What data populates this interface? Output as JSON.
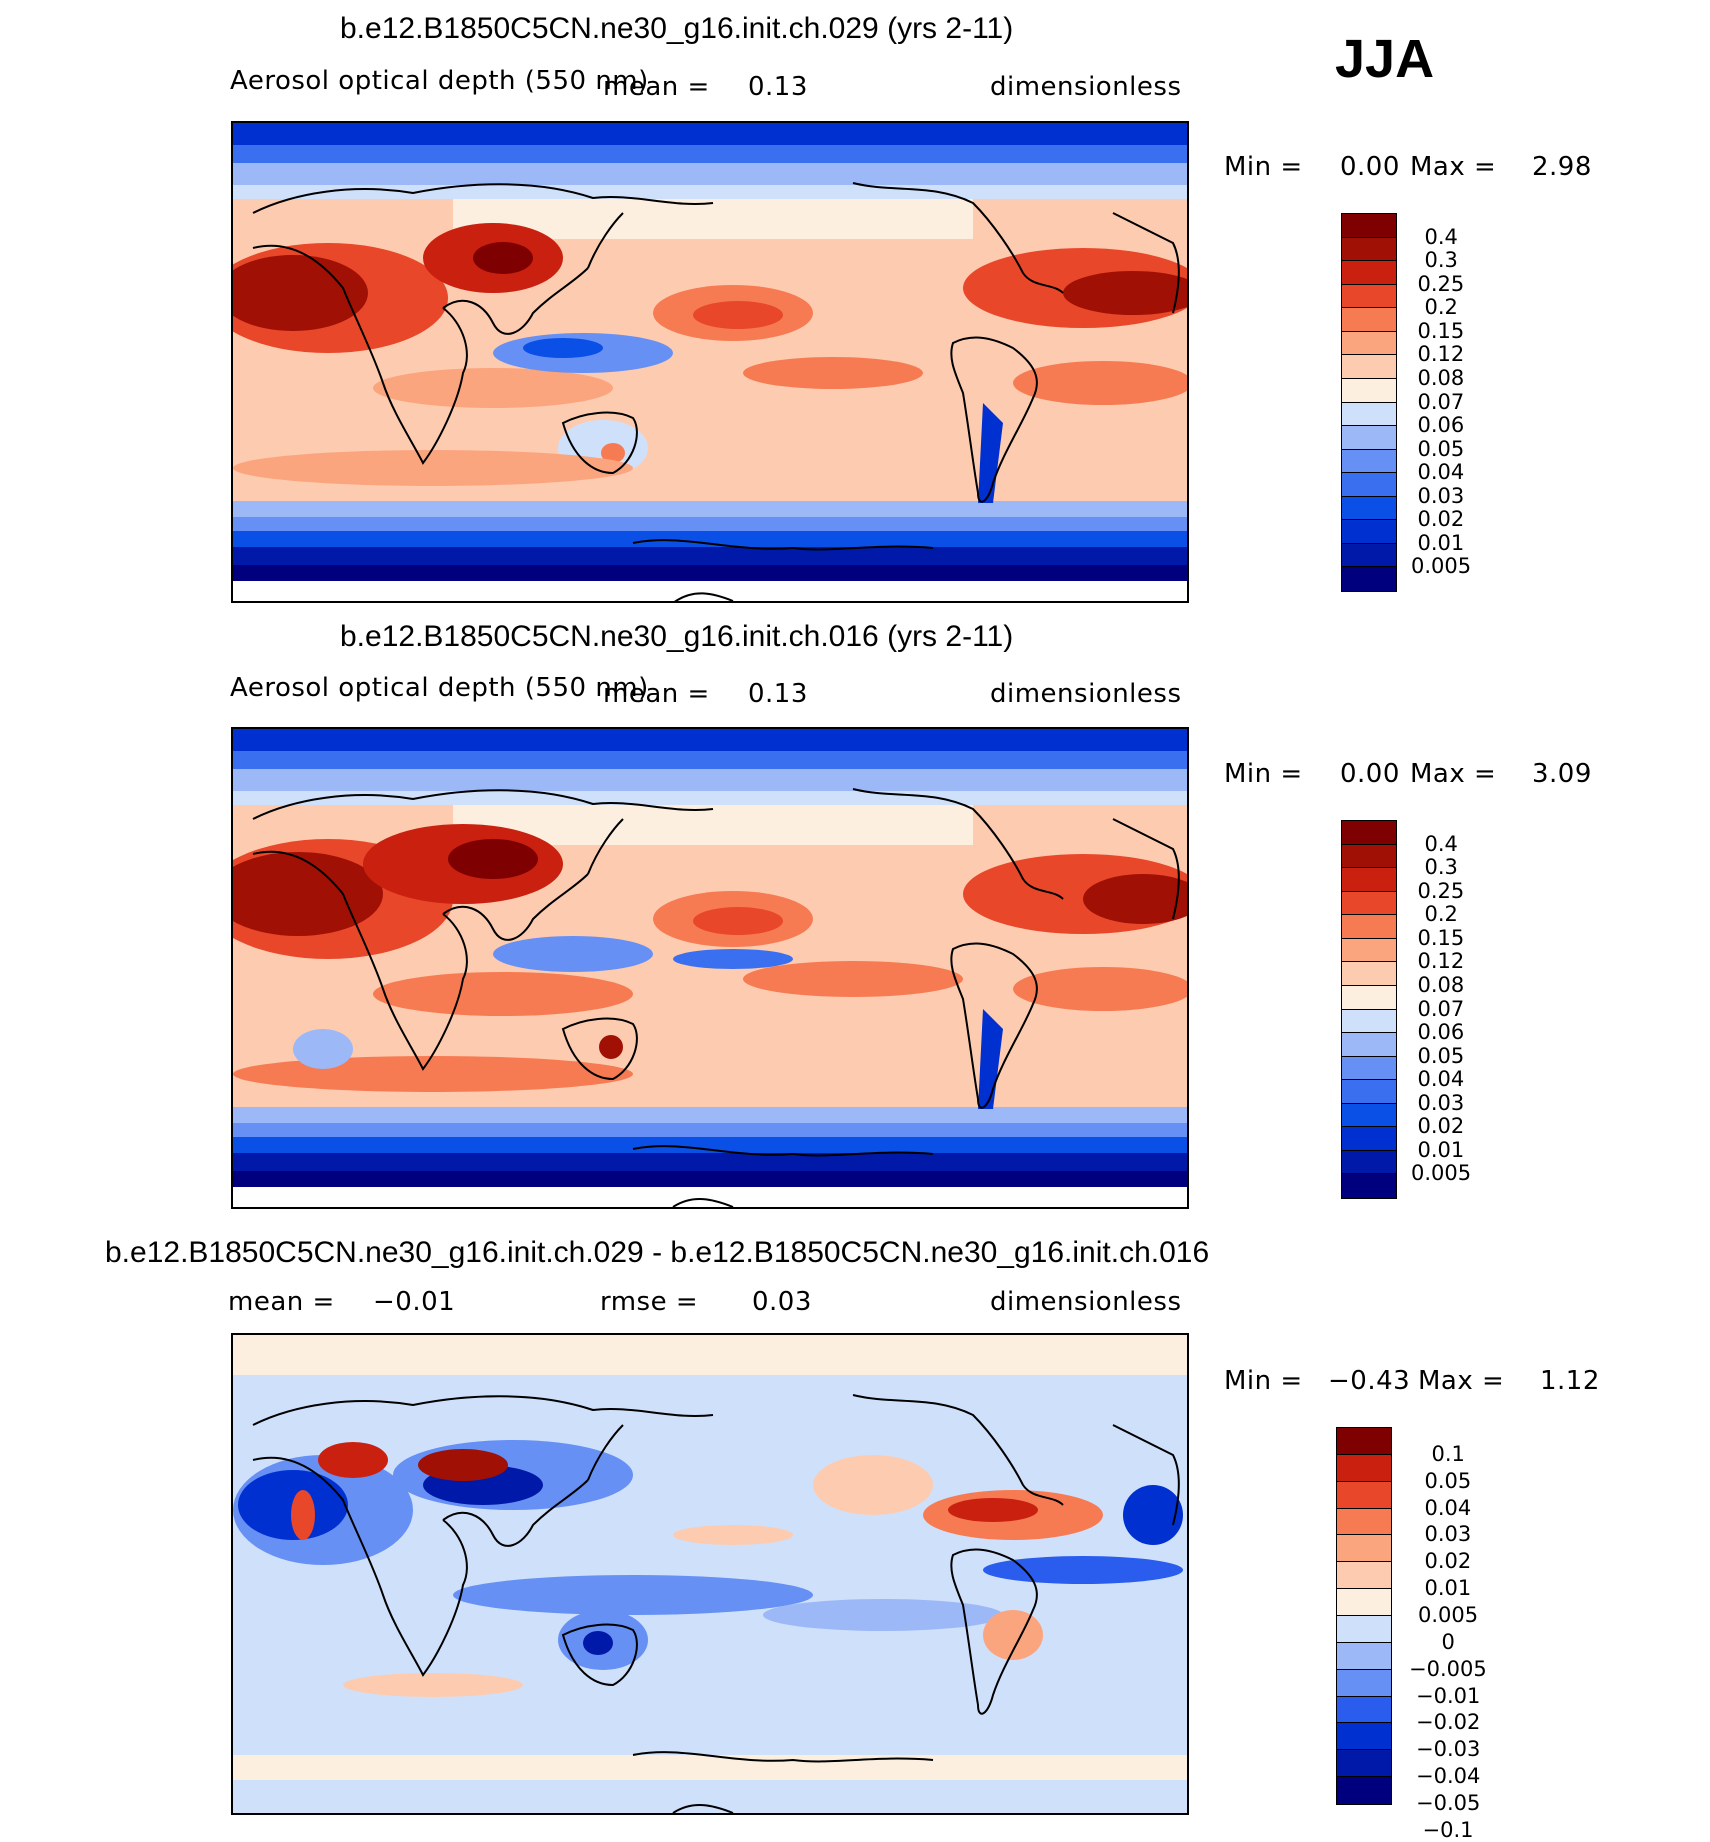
{
  "season": "JJA",
  "colors": {
    "aod": [
      "#00007f",
      "#0019a8",
      "#0030d0",
      "#0a4fe6",
      "#3a6ff0",
      "#6690f4",
      "#9cb8f7",
      "#cfe0fb",
      "#fdefe0",
      "#fdccb0",
      "#fba57f",
      "#f77b52",
      "#e8472a",
      "#c9200f",
      "#a01005",
      "#7f0000"
    ],
    "diff": [
      "#00007f",
      "#0019a8",
      "#0030d0",
      "#2a5cee",
      "#6690f4",
      "#9cb8f7",
      "#cfe0fb",
      "#fdefe0",
      "#fdccb0",
      "#fba57f",
      "#f77b52",
      "#e8472a",
      "#c9200f",
      "#7f0000"
    ]
  },
  "panels": [
    {
      "title": "b.e12.B1850C5CN.ne30_g16.init.ch.029 (yrs 2-11)",
      "left_label": "Aerosol optical depth (550 nm)",
      "mean_label": "mean =",
      "mean_value": "0.13",
      "units": "dimensionless",
      "min_label": "Min =",
      "min_value": "0.00",
      "max_label": "Max =",
      "max_value": "2.98",
      "contour_levels": [
        "0.4",
        "0.3",
        "0.25",
        "0.2",
        "0.15",
        "0.12",
        "0.08",
        "0.07",
        "0.06",
        "0.05",
        "0.04",
        "0.03",
        "0.02",
        "0.01",
        "0.005"
      ]
    },
    {
      "title": "b.e12.B1850C5CN.ne30_g16.init.ch.016 (yrs 2-11)",
      "left_label": "Aerosol optical depth (550 nm)",
      "mean_label": "mean =",
      "mean_value": "0.13",
      "units": "dimensionless",
      "min_label": "Min =",
      "min_value": "0.00",
      "max_label": "Max =",
      "max_value": "3.09",
      "contour_levels": [
        "0.4",
        "0.3",
        "0.25",
        "0.2",
        "0.15",
        "0.12",
        "0.08",
        "0.07",
        "0.06",
        "0.05",
        "0.04",
        "0.03",
        "0.02",
        "0.01",
        "0.005"
      ]
    },
    {
      "title": "b.e12.B1850C5CN.ne30_g16.init.ch.029 - b.e12.B1850C5CN.ne30_g16.init.ch.016",
      "mean_label": "mean =",
      "mean_value": "−0.01",
      "rmse_label": "rmse =",
      "rmse_value": "0.03",
      "units": "dimensionless",
      "min_label": "Min =",
      "min_value": "−0.43",
      "max_label": "Max =",
      "max_value": "1.12",
      "contour_levels": [
        "0.1",
        "0.05",
        "0.04",
        "0.03",
        "0.02",
        "0.01",
        "0.005",
        "0",
        "−0.005",
        "−0.01",
        "−0.02",
        "−0.03",
        "−0.04",
        "−0.05",
        "−0.1"
      ]
    }
  ]
}
